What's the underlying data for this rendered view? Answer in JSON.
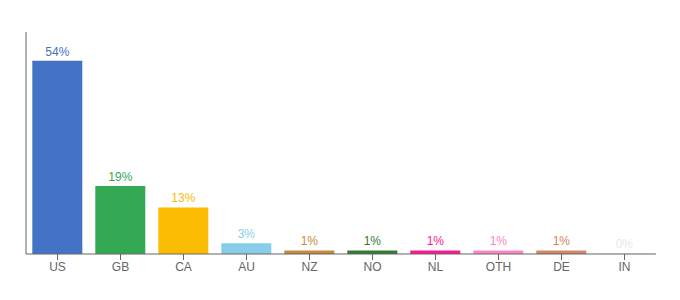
{
  "chart_data": {
    "type": "bar",
    "categories": [
      "US",
      "GB",
      "CA",
      "AU",
      "NZ",
      "NO",
      "NL",
      "OTH",
      "DE",
      "IN"
    ],
    "values": [
      54,
      19,
      13,
      3,
      1,
      1,
      1,
      1,
      1,
      0.2
    ],
    "value_labels": [
      "54%",
      "19%",
      "13%",
      "3%",
      "1%",
      "1%",
      "1%",
      "1%",
      "1%",
      "0%"
    ],
    "colors": [
      "#4472C4",
      "#34A853",
      "#FBBC04",
      "#87CEEB",
      "#C8873A",
      "#2E7D32",
      "#FF1493",
      "#FF85C8",
      "#D4856A",
      "#E8E8E8"
    ],
    "ylim": [
      0,
      62
    ],
    "data_labels": true,
    "tick_labels": "x",
    "grid": false
  }
}
